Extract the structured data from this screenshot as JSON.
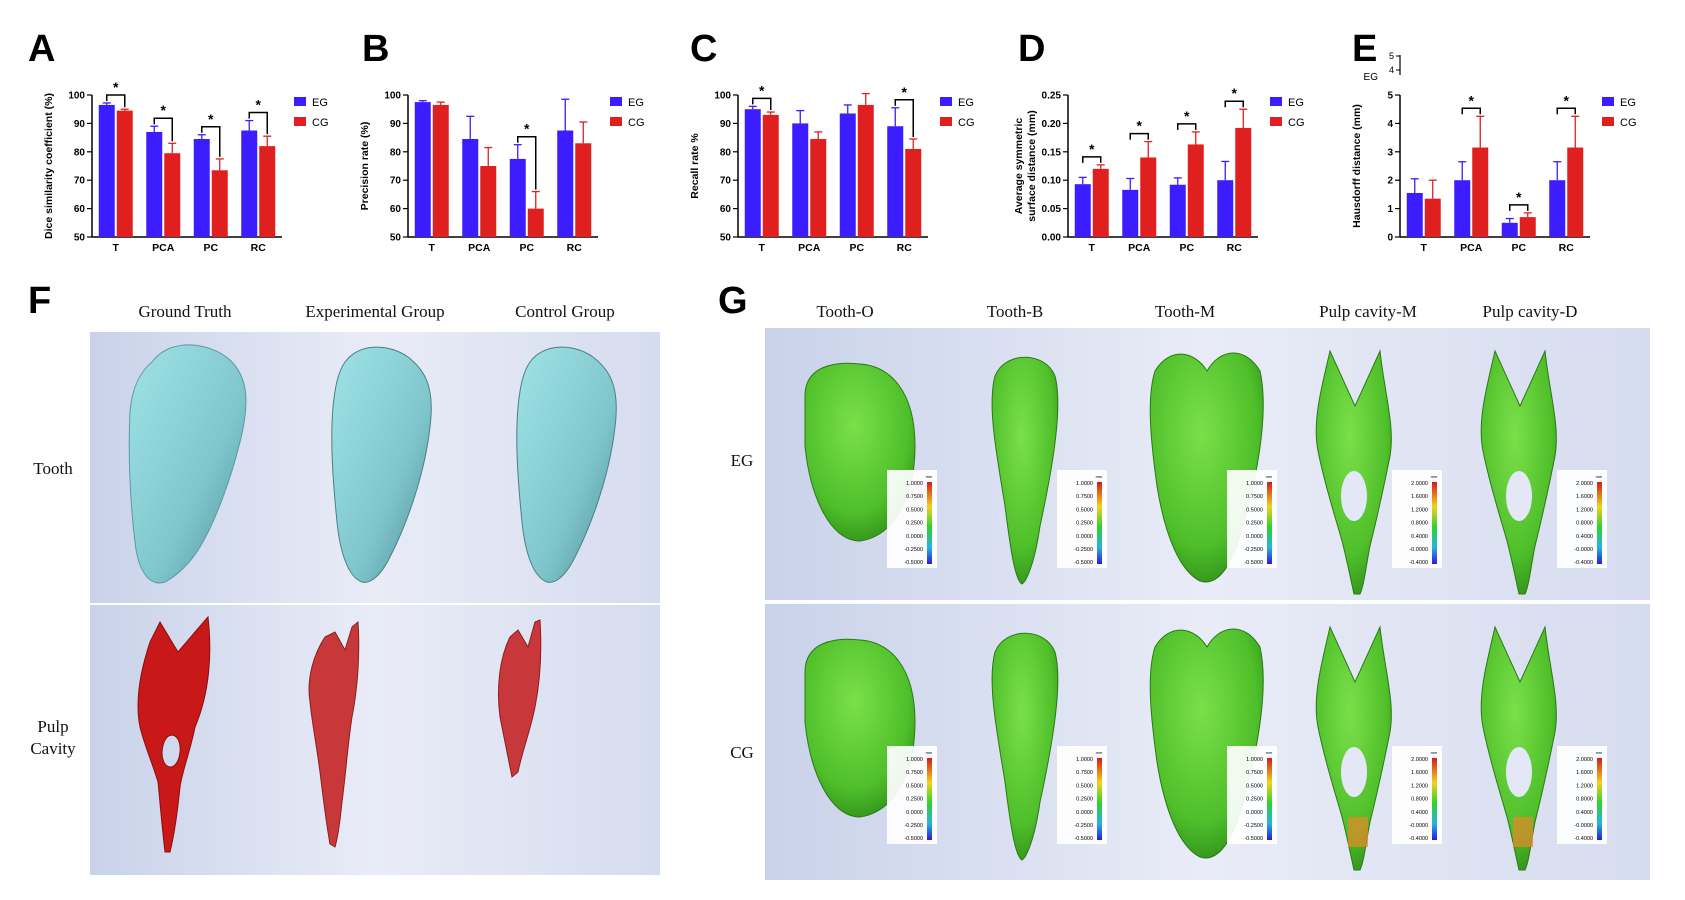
{
  "panel_letters": [
    "A",
    "B",
    "C",
    "D",
    "E",
    "F",
    "G"
  ],
  "colors": {
    "EG": "#3b1dff",
    "CG": "#e01f1f",
    "sig": "#000000"
  },
  "chart_data": [
    {
      "type": "bar",
      "panel": "A",
      "ylabel": "Dice similarity coefficient (%)",
      "categories": [
        "T",
        "PCA",
        "PC",
        "RC"
      ],
      "ylim": [
        50,
        100
      ],
      "yticks": [
        50,
        60,
        70,
        80,
        90,
        100
      ],
      "series": [
        {
          "name": "EG",
          "values": [
            96.5,
            87,
            84.5,
            87.5
          ],
          "errors": [
            0.7,
            2,
            1.5,
            3.5
          ]
        },
        {
          "name": "CG",
          "values": [
            94.5,
            79.5,
            73.5,
            82
          ],
          "errors": [
            0.5,
            3.5,
            4,
            3.5
          ]
        }
      ],
      "significance": [
        "*",
        "*",
        "*",
        "*"
      ],
      "legend": "top-right"
    },
    {
      "type": "bar",
      "panel": "B",
      "ylabel": "Precision rate (%)",
      "categories": [
        "T",
        "PCA",
        "PC",
        "RC"
      ],
      "ylim": [
        50,
        100
      ],
      "yticks": [
        50,
        60,
        70,
        80,
        90,
        100
      ],
      "series": [
        {
          "name": "EG",
          "values": [
            97.5,
            84.5,
            77.5,
            87.5
          ],
          "errors": [
            0.5,
            8,
            5,
            11
          ]
        },
        {
          "name": "CG",
          "values": [
            96.5,
            75,
            60,
            83
          ],
          "errors": [
            1,
            6.5,
            6,
            7.5
          ]
        }
      ],
      "significance": [
        "",
        "",
        "*",
        ""
      ],
      "legend": "top-right"
    },
    {
      "type": "bar",
      "panel": "C",
      "ylabel": "Recall rate %",
      "categories": [
        "T",
        "PCA",
        "PC",
        "RC"
      ],
      "ylim": [
        50,
        100
      ],
      "yticks": [
        50,
        60,
        70,
        80,
        90,
        100
      ],
      "series": [
        {
          "name": "EG",
          "values": [
            95,
            90,
            93.5,
            89
          ],
          "errors": [
            1,
            4.5,
            3,
            6.5
          ]
        },
        {
          "name": "CG",
          "values": [
            93,
            84.5,
            96.5,
            81
          ],
          "errors": [
            1,
            2.5,
            4,
            3.5
          ]
        }
      ],
      "significance": [
        "*",
        "",
        "",
        "*"
      ],
      "legend": "top-right"
    },
    {
      "type": "bar",
      "panel": "D",
      "ylabel": "Average symmetric surface distance (mm)",
      "categories": [
        "T",
        "PCA",
        "PC",
        "RC"
      ],
      "ylim": [
        0,
        0.25
      ],
      "yticks": [
        0.0,
        0.05,
        0.1,
        0.15,
        0.2,
        0.25
      ],
      "series": [
        {
          "name": "EG",
          "values": [
            0.093,
            0.083,
            0.092,
            0.1
          ],
          "errors": [
            0.012,
            0.02,
            0.012,
            0.033
          ]
        },
        {
          "name": "CG",
          "values": [
            0.12,
            0.14,
            0.163,
            0.192
          ],
          "errors": [
            0.007,
            0.028,
            0.022,
            0.033
          ]
        }
      ],
      "significance": [
        "*",
        "*",
        "*",
        "*"
      ],
      "legend": "top-right"
    },
    {
      "type": "bar",
      "panel": "E",
      "ylabel": "Hausdorff distance (mm)",
      "categories": [
        "T",
        "PCA",
        "PC",
        "RC"
      ],
      "ylim": [
        0,
        5
      ],
      "yticks": [
        0,
        1,
        2,
        3,
        4,
        5
      ],
      "series": [
        {
          "name": "EG",
          "values": [
            1.55,
            2.0,
            0.5,
            2.0
          ],
          "errors": [
            0.5,
            0.65,
            0.15,
            0.65
          ]
        },
        {
          "name": "CG",
          "values": [
            1.35,
            3.15,
            0.7,
            3.15
          ],
          "errors": [
            0.65,
            1.1,
            0.15,
            1.1
          ]
        }
      ],
      "significance": [
        "",
        "*",
        "*",
        "*"
      ],
      "legend": "top-right",
      "fragment": {
        "ticks": [
          "4",
          "5"
        ],
        "label": "EG"
      }
    }
  ],
  "panel_F": {
    "columns": [
      "Ground Truth",
      "Experimental Group",
      "Control Group"
    ],
    "rows": [
      "Tooth",
      "Pulp\nCavity"
    ]
  },
  "panel_G": {
    "columns": [
      "Tooth-O",
      "Tooth-B",
      "Tooth-M",
      "Pulp cavity-M",
      "Pulp cavity-D"
    ],
    "rows": [
      "EG",
      "CG"
    ],
    "colorbar_unit": "mm",
    "tooth_scale": [
      "1.0000",
      "0.7500",
      "0.5000",
      "0.2500",
      "0.0000",
      "-0.2500",
      "-0.5000"
    ],
    "pulp_scale": [
      "2.0000",
      "1.6000",
      "1.2000",
      "0.8000",
      "0.4000",
      "-0.0000",
      "-0.4000"
    ]
  }
}
